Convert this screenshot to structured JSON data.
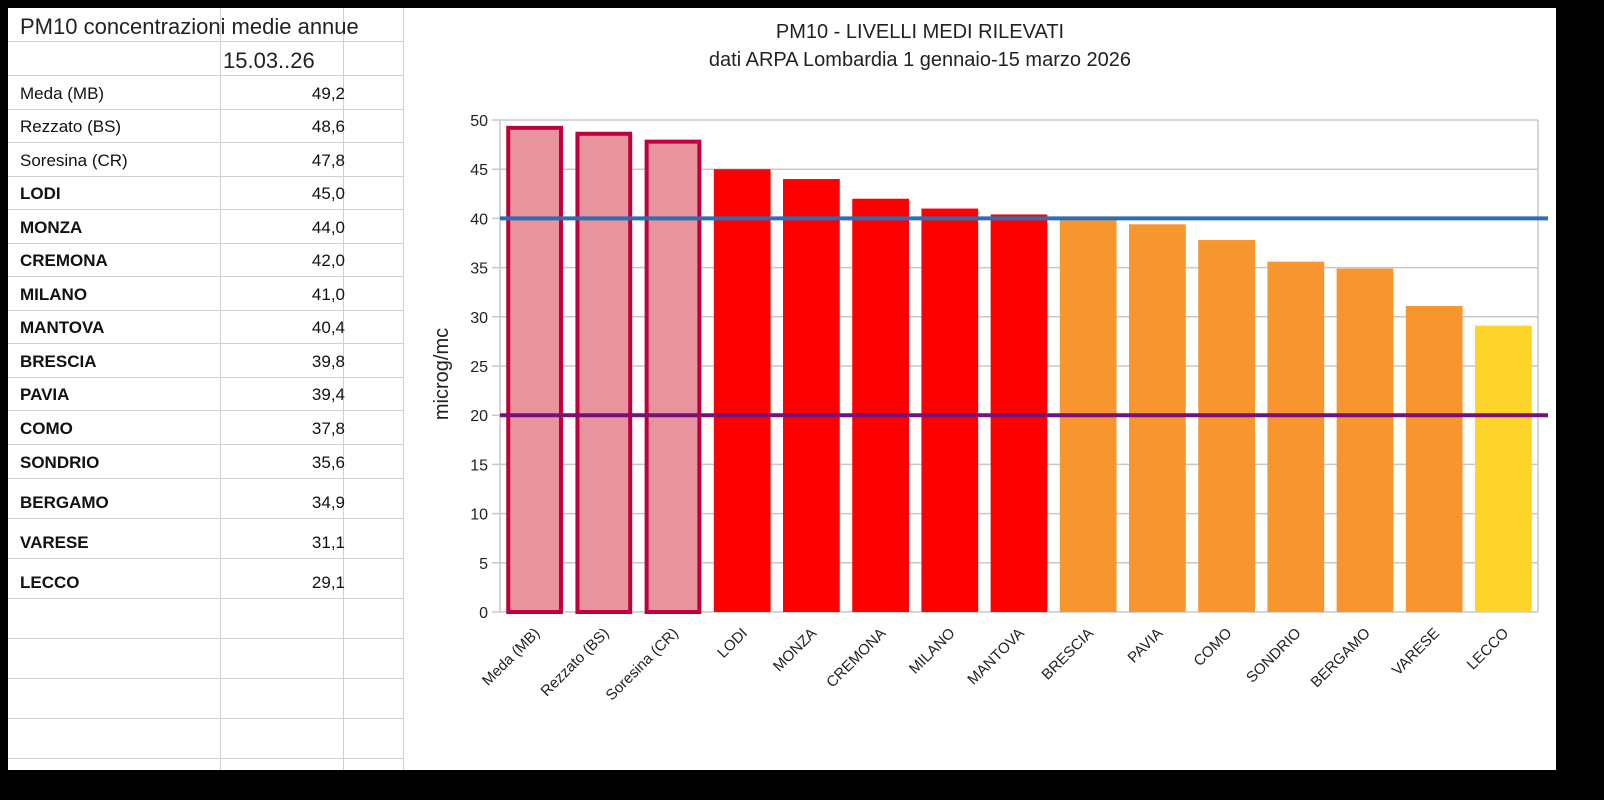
{
  "table": {
    "title": "PM10 concentrazioni medie  annue",
    "date": "15.03..26",
    "rows": [
      {
        "name": "Meda (MB)",
        "value": "49,2",
        "bold": false
      },
      {
        "name": "Rezzato (BS)",
        "value": "48,6",
        "bold": false
      },
      {
        "name": "Soresina (CR)",
        "value": "47,8",
        "bold": false
      },
      {
        "name": "LODI",
        "value": "45,0",
        "bold": true
      },
      {
        "name": "MONZA",
        "value": "44,0",
        "bold": true
      },
      {
        "name": "CREMONA",
        "value": "42,0",
        "bold": true
      },
      {
        "name": "MILANO",
        "value": "41,0",
        "bold": true
      },
      {
        "name": "MANTOVA",
        "value": "40,4",
        "bold": true
      },
      {
        "name": "BRESCIA",
        "value": "39,8",
        "bold": true
      },
      {
        "name": "PAVIA",
        "value": "39,4",
        "bold": true
      },
      {
        "name": "COMO",
        "value": "37,8",
        "bold": true
      },
      {
        "name": "SONDRIO",
        "value": "35,6",
        "bold": true
      },
      {
        "name": "BERGAMO",
        "value": "34,9",
        "bold": true
      },
      {
        "name": "VARESE",
        "value": "31,1",
        "bold": true
      },
      {
        "name": "LECCO",
        "value": "29,1",
        "bold": true
      }
    ]
  },
  "chart_data": {
    "type": "bar",
    "title": "PM10 - LIVELLI MEDI RILEVATI",
    "subtitle": "dati ARPA Lombardia 1 gennaio-15 marzo 2026",
    "ylabel": "microg/mc",
    "ylim": [
      0,
      50
    ],
    "yticks": [
      0,
      5,
      10,
      15,
      20,
      25,
      30,
      35,
      40,
      45,
      50
    ],
    "grid": true,
    "categories": [
      "Meda (MB)",
      "Rezzato (BS)",
      "Soresina (CR)",
      "LODI",
      "MONZA",
      "CREMONA",
      "MILANO",
      "MANTOVA",
      "BRESCIA",
      "PAVIA",
      "COMO",
      "SONDRIO",
      "BERGAMO",
      "VARESE",
      "LECCO"
    ],
    "values": [
      49.2,
      48.6,
      47.8,
      45.0,
      44.0,
      42.0,
      41.0,
      40.4,
      39.8,
      39.4,
      37.8,
      35.6,
      34.9,
      31.1,
      29.1
    ],
    "bar_colors": [
      "#e8949f",
      "#e8949f",
      "#e8949f",
      "#ff0000",
      "#ff0000",
      "#ff0000",
      "#ff0000",
      "#ff0000",
      "#f7952e",
      "#f7952e",
      "#f7952e",
      "#f7952e",
      "#f7952e",
      "#f7952e",
      "#ffd42a"
    ],
    "highlight_border": "#c0003c",
    "reference_lines": [
      {
        "value": 40,
        "color": "#2e6db4"
      },
      {
        "value": 20,
        "color": "#7a0f7a"
      }
    ]
  }
}
